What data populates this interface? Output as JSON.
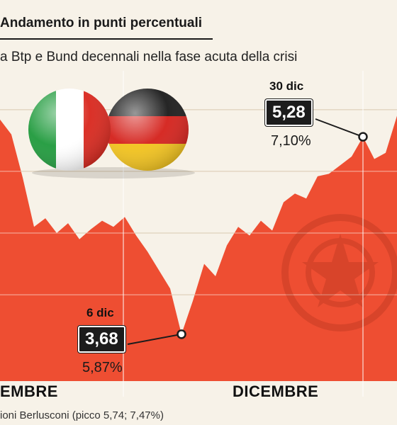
{
  "header": {
    "title": "Andamento in punti percentuali",
    "subtitle": "a Btp e Bund decennali nella fase acuta della crisi"
  },
  "axis": {
    "months": [
      "EMBRE",
      "DICEMBRE"
    ]
  },
  "footnote": "ioni Berlusconi (picco 5,74; 7,47%)",
  "callouts": {
    "low": {
      "date": "6 dic",
      "spread": "3,68",
      "yield": "5,87%"
    },
    "high": {
      "date": "30 dic",
      "spread": "5,28",
      "yield": "7,10%"
    }
  },
  "colors": {
    "area": "#ee4e32",
    "background": "#f7f2e8",
    "gridline": "#ffffff"
  },
  "icons": [
    "italy-flag-icon",
    "germany-flag-icon",
    "emblem-watermark-icon"
  ],
  "chart_data": {
    "type": "area",
    "title": "Andamento in punti percentuali",
    "series": [
      {
        "values": [
          5.42,
          5.3,
          4.95,
          4.55,
          4.62,
          4.5,
          4.58,
          4.45,
          4.53,
          4.6,
          4.55,
          4.63,
          4.48,
          4.35,
          4.2,
          4.05,
          3.68,
          3.95,
          4.25,
          4.15,
          4.4,
          4.55,
          4.48,
          4.6,
          4.52,
          4.75,
          4.82,
          4.78,
          4.96,
          4.98,
          5.05,
          5.12,
          5.28,
          5.1,
          5.15,
          5.45
        ]
      }
    ],
    "annotations": [
      {
        "label": "6 dic",
        "value": 3.68,
        "yield": "5,87%"
      },
      {
        "label": "30 dic",
        "value": 5.28,
        "yield": "7,10%"
      }
    ],
    "xlabel": "",
    "ylabel": "",
    "grid": true
  }
}
